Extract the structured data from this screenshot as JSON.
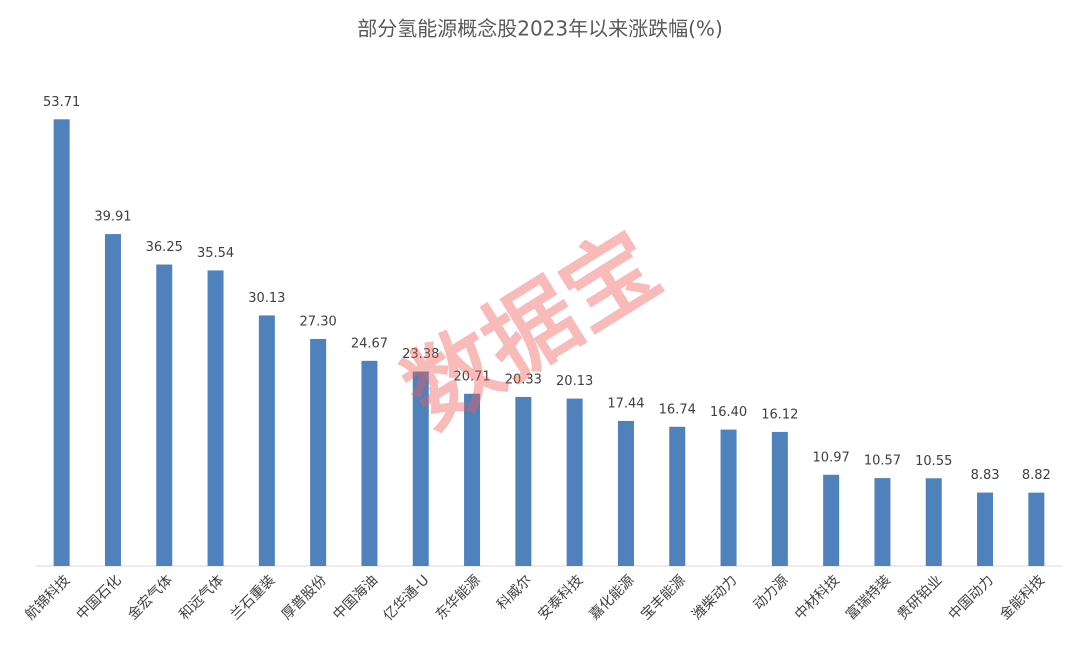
{
  "chart_data": {
    "type": "bar",
    "title": "部分氢能源概念股2023年以来涨跌幅(%)",
    "watermark": "数据宝",
    "categories": [
      "航锦科技",
      "中国石化",
      "金宏气体",
      "和远气体",
      "兰石重装",
      "厚普股份",
      "中国海油",
      "亿华通-U",
      "东华能源",
      "科威尔",
      "安泰科技",
      "嘉化能源",
      "宝丰能源",
      "潍柴动力",
      "动力源",
      "中材科技",
      "富瑞特装",
      "贵研铂业",
      "中国动力",
      "金能科技"
    ],
    "values": [
      53.71,
      39.91,
      36.25,
      35.54,
      30.13,
      27.3,
      24.67,
      23.38,
      20.71,
      20.33,
      20.13,
      17.44,
      16.74,
      16.4,
      16.12,
      10.97,
      10.57,
      10.55,
      8.83,
      8.82
    ],
    "value_labels": [
      "53.71",
      "39.91",
      "36.25",
      "35.54",
      "30.13",
      "27.30",
      "24.67",
      "23.38",
      "20.71",
      "20.33",
      "20.13",
      "17.44",
      "16.74",
      "16.40",
      "16.12",
      "10.97",
      "10.57",
      "10.55",
      "8.83",
      "8.82"
    ],
    "color": "#4f81bd",
    "ylim": [
      0,
      60
    ]
  }
}
